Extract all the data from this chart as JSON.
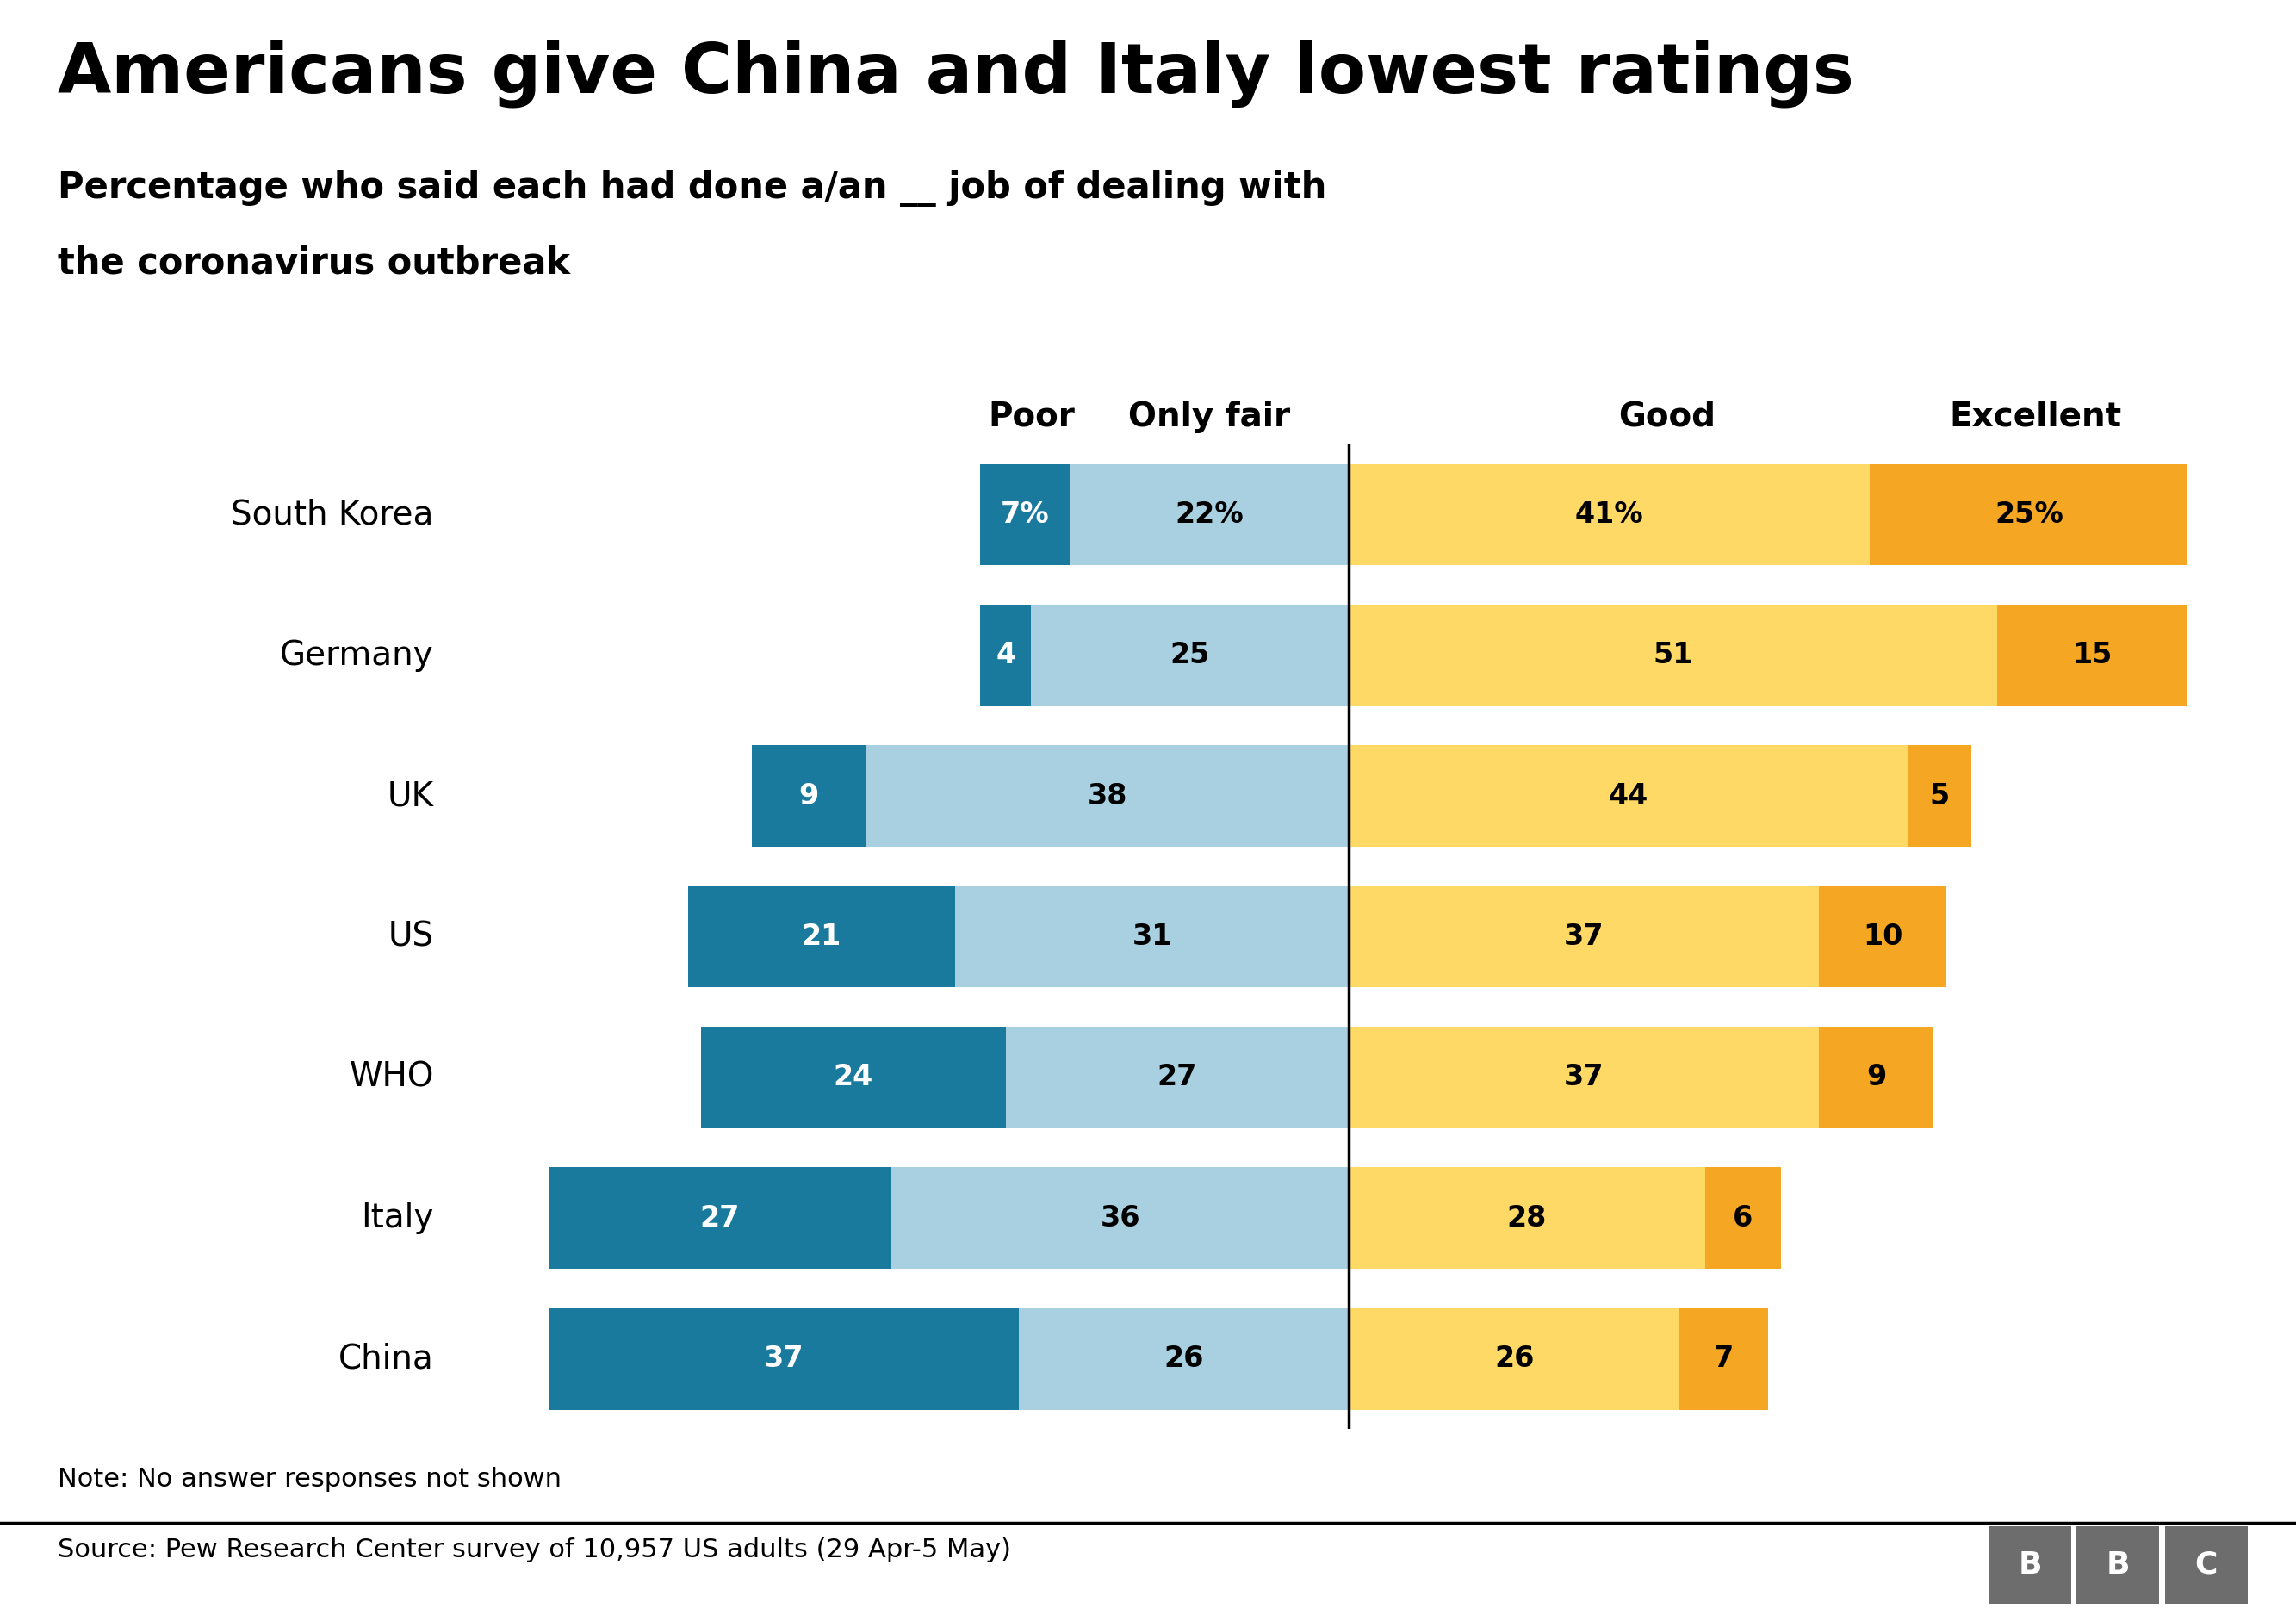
{
  "title": "Americans give China and Italy lowest ratings",
  "subtitle_line1": "Percentage who said each had done a/an __ job of dealing with",
  "subtitle_line2": "the coronavirus outbreak",
  "note": "Note: No answer responses not shown",
  "source": "Source: Pew Research Center survey of 10,957 US adults (29 Apr-5 May)",
  "categories": [
    "South Korea",
    "Germany",
    "UK",
    "US",
    "WHO",
    "Italy",
    "China"
  ],
  "poor": [
    7,
    4,
    9,
    21,
    24,
    27,
    37
  ],
  "only_fair": [
    22,
    25,
    38,
    31,
    27,
    36,
    26
  ],
  "good": [
    41,
    51,
    44,
    37,
    37,
    28,
    26
  ],
  "excellent": [
    25,
    15,
    5,
    10,
    9,
    6,
    7
  ],
  "color_poor": "#1a7a9e",
  "color_only_fair": "#a8d0e0",
  "color_good": "#ffd966",
  "color_excellent": "#f5a623",
  "header_poor": "Poor",
  "header_only_fair": "Only fair",
  "header_good": "Good",
  "header_excellent": "Excellent",
  "background_color": "#ffffff",
  "bar_height": 0.72,
  "title_fontsize": 58,
  "subtitle_fontsize": 30,
  "label_fontsize": 24,
  "header_fontsize": 28,
  "note_fontsize": 22,
  "source_fontsize": 22,
  "country_fontsize": 28,
  "bbc_color": "#6d6d6d"
}
